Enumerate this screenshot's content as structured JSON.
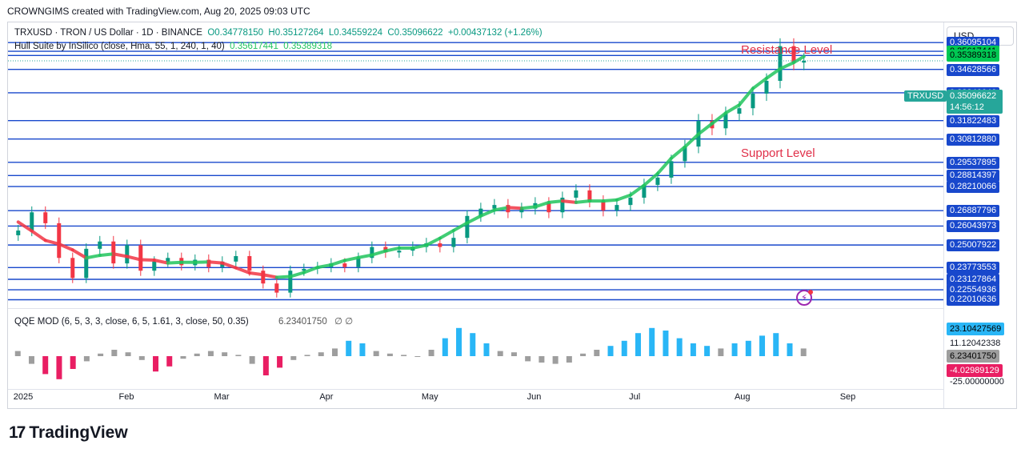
{
  "header": {
    "text": "CROWNGIMS created with TradingView.com, Aug 20, 2025 09:03 UTC"
  },
  "currency": "USD",
  "legend": {
    "symbol": "TRXUSD · TRON / US Dollar · 1D · BINANCE",
    "open": "O0.34778150",
    "high": "H0.35127264",
    "low": "L0.34559224",
    "close": "C0.35096622",
    "change": "+0.00437132 (+1.26%)",
    "hull_name": "Hull Suite by InSilico (close, Hma, 55, 1, 240, 1, 40)",
    "hull_v1": "0.35617441",
    "hull_v2": "0.35389318",
    "qqe_name": "QQE MOD (6, 5, 3, 3, close, 6, 5, 1.61, 3, close, 50, 0.35)",
    "qqe_value": "6.23401750"
  },
  "annotations": {
    "resistance": "Resistance Level",
    "support": "Support Level"
  },
  "last_price": {
    "symbol": "TRXUSD",
    "price": "0.35096622",
    "countdown": "14:56:12"
  },
  "price_levels": [
    "0.36095104",
    "0.35617441",
    "0.35389318",
    "0.35096622",
    "0.34628566",
    "0.33346646",
    "0.31822483",
    "0.30812880",
    "0.29537895",
    "0.28814397",
    "0.28210066",
    "0.26887796",
    "0.26043973",
    "0.25007922",
    "0.23773553",
    "0.23127864",
    "0.22554936",
    "0.22010636"
  ],
  "qqe_labels": {
    "top": "23.10427569",
    "mid": "11.12042338",
    "current": "6.23401750",
    "neg": "-4.02989129",
    "bottom": "-25.00000000"
  },
  "months": [
    "2025",
    "Feb",
    "Mar",
    "Apr",
    "May",
    "Jun",
    "Jul",
    "Aug",
    "Sep"
  ],
  "logo": {
    "mark": "17",
    "name": "TradingView"
  },
  "colors": {
    "up": "#089981",
    "down": "#f23645",
    "level": "#1848cc",
    "hull_up": "#22c55e",
    "hull_down": "#f23645",
    "qqe_blue": "#29b6f6",
    "qqe_gray": "#9e9e9e",
    "qqe_pink": "#e91e63"
  },
  "chart_data": [
    {
      "type": "candlestick",
      "title": "TRXUSD · TRON / US Dollar · 1D · BINANCE",
      "x_range": [
        "2024-12-29",
        "2025-09-30"
      ],
      "ylim": [
        0.2155,
        0.372
      ],
      "horizontal_levels": [
        0.36095104,
        0.35617441,
        0.35389318,
        0.34628566,
        0.33346646,
        0.31822483,
        0.3081288,
        0.29537895,
        0.28814397,
        0.28210066,
        0.26887796,
        0.26043973,
        0.25007922,
        0.23773553,
        0.23127864,
        0.22554936,
        0.22010636
      ],
      "close_series": [
        {
          "x": "2025-01-01",
          "y": 0.258
        },
        {
          "x": "2025-01-05",
          "y": 0.268
        },
        {
          "x": "2025-01-09",
          "y": 0.262
        },
        {
          "x": "2025-01-13",
          "y": 0.243
        },
        {
          "x": "2025-01-17",
          "y": 0.232
        },
        {
          "x": "2025-01-21",
          "y": 0.248
        },
        {
          "x": "2025-01-25",
          "y": 0.252
        },
        {
          "x": "2025-01-29",
          "y": 0.24
        },
        {
          "x": "2025-02-02",
          "y": 0.25
        },
        {
          "x": "2025-02-06",
          "y": 0.236
        },
        {
          "x": "2025-02-10",
          "y": 0.241
        },
        {
          "x": "2025-02-14",
          "y": 0.243
        },
        {
          "x": "2025-02-18",
          "y": 0.239
        },
        {
          "x": "2025-02-22",
          "y": 0.242
        },
        {
          "x": "2025-02-26",
          "y": 0.238
        },
        {
          "x": "2025-03-02",
          "y": 0.241
        },
        {
          "x": "2025-03-06",
          "y": 0.244
        },
        {
          "x": "2025-03-10",
          "y": 0.236
        },
        {
          "x": "2025-03-14",
          "y": 0.229
        },
        {
          "x": "2025-03-18",
          "y": 0.224
        },
        {
          "x": "2025-03-22",
          "y": 0.236
        },
        {
          "x": "2025-03-26",
          "y": 0.237
        },
        {
          "x": "2025-03-30",
          "y": 0.238
        },
        {
          "x": "2025-04-03",
          "y": 0.24
        },
        {
          "x": "2025-04-07",
          "y": 0.238
        },
        {
          "x": "2025-04-11",
          "y": 0.243
        },
        {
          "x": "2025-04-15",
          "y": 0.249
        },
        {
          "x": "2025-04-19",
          "y": 0.246
        },
        {
          "x": "2025-04-23",
          "y": 0.247
        },
        {
          "x": "2025-04-27",
          "y": 0.249
        },
        {
          "x": "2025-05-01",
          "y": 0.251
        },
        {
          "x": "2025-05-05",
          "y": 0.249
        },
        {
          "x": "2025-05-09",
          "y": 0.254
        },
        {
          "x": "2025-05-13",
          "y": 0.266
        },
        {
          "x": "2025-05-17",
          "y": 0.27
        },
        {
          "x": "2025-05-21",
          "y": 0.272
        },
        {
          "x": "2025-05-25",
          "y": 0.268
        },
        {
          "x": "2025-05-29",
          "y": 0.27
        },
        {
          "x": "2025-06-02",
          "y": 0.273
        },
        {
          "x": "2025-06-06",
          "y": 0.268
        },
        {
          "x": "2025-06-10",
          "y": 0.276
        },
        {
          "x": "2025-06-14",
          "y": 0.28
        },
        {
          "x": "2025-06-18",
          "y": 0.274
        },
        {
          "x": "2025-06-22",
          "y": 0.269
        },
        {
          "x": "2025-06-26",
          "y": 0.272
        },
        {
          "x": "2025-06-30",
          "y": 0.276
        },
        {
          "x": "2025-07-04",
          "y": 0.283
        },
        {
          "x": "2025-07-08",
          "y": 0.287
        },
        {
          "x": "2025-07-12",
          "y": 0.296
        },
        {
          "x": "2025-07-16",
          "y": 0.304
        },
        {
          "x": "2025-07-20",
          "y": 0.318
        },
        {
          "x": "2025-07-24",
          "y": 0.314
        },
        {
          "x": "2025-07-28",
          "y": 0.322
        },
        {
          "x": "2025-08-01",
          "y": 0.325
        },
        {
          "x": "2025-08-05",
          "y": 0.333
        },
        {
          "x": "2025-08-09",
          "y": 0.34
        },
        {
          "x": "2025-08-13",
          "y": 0.359
        },
        {
          "x": "2025-08-17",
          "y": 0.35
        },
        {
          "x": "2025-08-20",
          "y": 0.351
        }
      ]
    },
    {
      "type": "bar",
      "title": "QQE MOD (6, 5, 3, 3, close, 6, 5, 1.61, 3, close, 50, 0.35)",
      "ylim": [
        -25,
        25
      ],
      "values": [
        4,
        -6,
        -14,
        -18,
        -10,
        -4,
        2,
        5,
        3,
        -3,
        -12,
        -8,
        -2,
        2,
        4,
        3,
        1,
        -6,
        -15,
        -9,
        -3,
        1,
        3,
        6,
        12,
        10,
        4,
        2,
        1,
        0,
        5,
        14,
        22,
        18,
        10,
        4,
        3,
        -4,
        -5,
        -6,
        -5,
        2,
        5,
        8,
        12,
        18,
        22,
        20,
        14,
        10,
        8,
        6,
        10,
        12,
        16,
        18,
        10,
        6
      ]
    }
  ]
}
